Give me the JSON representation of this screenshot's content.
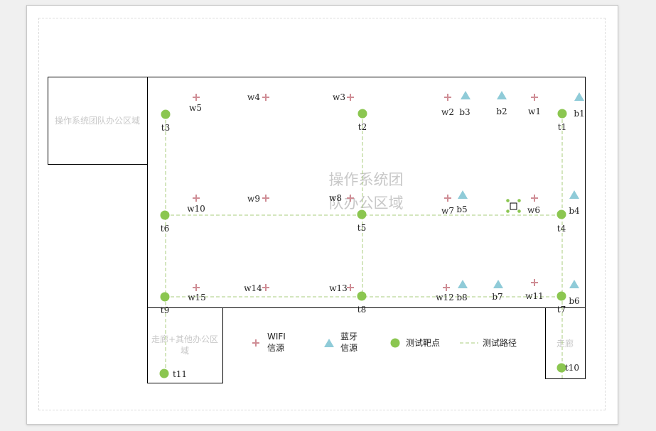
{
  "colors": {
    "wifi": "#cf8d95",
    "bluetooth": "#8fcbd8",
    "test_point": "#8bc650",
    "path": "#a9cc7c",
    "wall": "#000000",
    "zone_text": "#c8c8c8"
  },
  "zones": {
    "os_team_small": "操作系统团队办公区域",
    "main_line1": "操作系统团",
    "main_line2": "队办公区域",
    "corridor_left_line1": "走廊+其他办公区",
    "corridor_left_line2": "域",
    "corridor_right": "走廊"
  },
  "labels": {
    "wifi": [
      "w1",
      "w2",
      "w3",
      "w4",
      "w5",
      "w6",
      "w7",
      "w8",
      "w9",
      "w10",
      "w11",
      "w12",
      "w13",
      "w14",
      "w15"
    ],
    "bluetooth": [
      "b1",
      "b2",
      "b3",
      "b4",
      "b5",
      "b6",
      "b7",
      "b8"
    ],
    "test_points": [
      "t1",
      "t2",
      "t3",
      "t4",
      "t5",
      "t6",
      "t7",
      "t8",
      "t9",
      "t10",
      "t11"
    ]
  },
  "legend": {
    "wifi_line1": "WIFI",
    "wifi_line2": "信源",
    "bt_line1": "蓝牙",
    "bt_line2": "信源",
    "test_point": "测试靶点",
    "path": "测试路径",
    "wifi_icon": "plus-icon",
    "bt_icon": "triangle-icon",
    "test_point_icon": "circle-icon"
  }
}
